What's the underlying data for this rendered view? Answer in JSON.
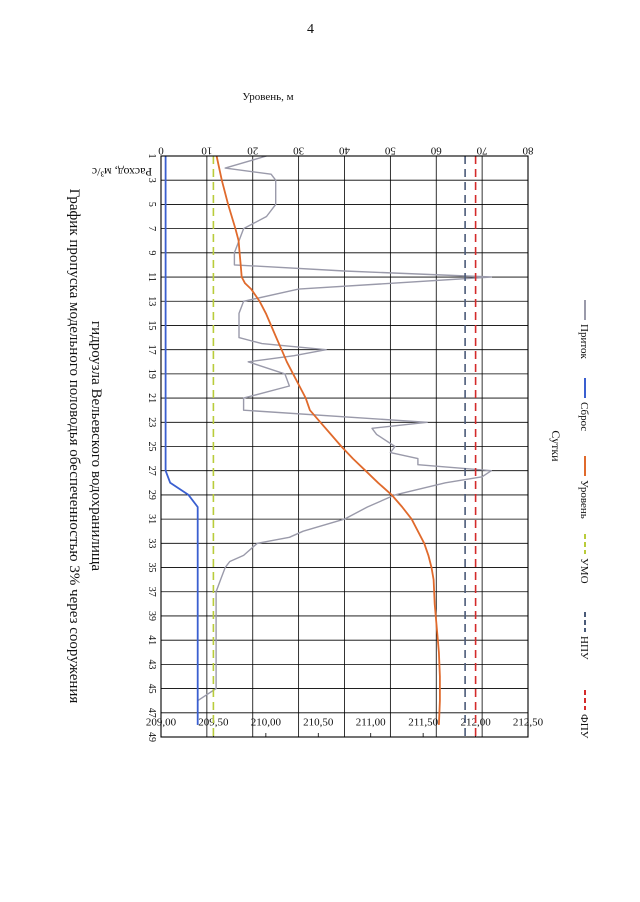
{
  "page_number": "4",
  "colors": {
    "inflow": "#9a9aaa",
    "discharge": "#3a5fd0",
    "level": "#e06a2c",
    "umo": "#b9cc3a",
    "npu": "#4a5a78",
    "fpu": "#d42a2a",
    "grid": "#000000"
  },
  "chart_data": {
    "type": "line",
    "title": "График пропуска модельного половодья обеспеченностью 3% через сооружения",
    "subtitle": "гидроузла Вельевского водохранилища",
    "xlabel": "Сутки",
    "ylabel": "Расход, м³/с",
    "y2label": "Уровень, м",
    "xlim": [
      1,
      49
    ],
    "ylim": [
      0,
      80
    ],
    "y2lim": [
      209.0,
      212.5
    ],
    "grid": true,
    "legend_position": "bottom",
    "x_ticks": [
      "1",
      "3",
      "5",
      "7",
      "9",
      "11",
      "13",
      "15",
      "17",
      "19",
      "21",
      "23",
      "25",
      "27",
      "29",
      "31",
      "33",
      "35",
      "37",
      "39",
      "41",
      "43",
      "45",
      "47",
      "49"
    ],
    "y_ticks": [
      "0",
      "10",
      "20",
      "30",
      "40",
      "50",
      "60",
      "70",
      "80"
    ],
    "y2_ticks": [
      "209,00",
      "209,50",
      "210,00",
      "210,50",
      "211,00",
      "211,50",
      "212,00",
      "212,50"
    ],
    "legend": [
      "Приток",
      "Сброс",
      "Уровень",
      "УМО",
      "НПУ",
      "ФПУ"
    ],
    "series": [
      {
        "name": "Приток",
        "axis": "left",
        "x": [
          1,
          2,
          2.5,
          3,
          4,
          5,
          6,
          7,
          8,
          9,
          10,
          10.5,
          11,
          12,
          13,
          14,
          15,
          16,
          16.5,
          17,
          17.5,
          18,
          19,
          20,
          21,
          22,
          23,
          23.5,
          24,
          25,
          25.5,
          26,
          26.5,
          27,
          27.5,
          28,
          29,
          30,
          31,
          32,
          32.5,
          33,
          34,
          34.5,
          35,
          36,
          37,
          38,
          39,
          40,
          41,
          42,
          43,
          44,
          45,
          46,
          47,
          48
        ],
        "y": [
          23,
          14,
          24,
          25,
          25,
          25,
          23,
          18,
          17,
          16,
          16,
          40,
          72,
          30,
          18,
          17,
          17,
          17,
          22,
          36,
          29,
          19,
          27,
          28,
          18,
          18,
          58,
          46,
          47,
          51,
          50,
          56,
          56,
          72,
          70,
          62,
          51,
          45,
          40,
          31,
          28,
          21,
          18,
          15,
          14,
          13,
          12,
          12,
          12,
          12,
          12,
          12,
          12,
          12,
          12,
          8,
          8,
          8
        ]
      },
      {
        "name": "Сброс",
        "axis": "left",
        "x": [
          1,
          27,
          28,
          29,
          30,
          31,
          32,
          33,
          34,
          35,
          36,
          37,
          38,
          39,
          40,
          41,
          42,
          43,
          44,
          45,
          46,
          47,
          48
        ],
        "y": [
          1,
          1,
          2,
          6,
          8,
          8,
          8,
          8,
          8,
          8,
          8,
          8,
          8,
          8,
          8,
          8,
          8,
          8,
          8,
          8,
          8,
          8,
          8
        ]
      },
      {
        "name": "Уровень",
        "axis": "right",
        "x": [
          1,
          3,
          5,
          7,
          8,
          9,
          10,
          11,
          11.5,
          12,
          13,
          14,
          15,
          16,
          17,
          18,
          19,
          20,
          21,
          22,
          23,
          24,
          25,
          26,
          27,
          28,
          29,
          30,
          31,
          32,
          33,
          34,
          35,
          36,
          38,
          40,
          42,
          44,
          46,
          48
        ],
        "y": [
          209.53,
          209.58,
          209.64,
          209.71,
          209.74,
          209.75,
          209.76,
          209.77,
          209.8,
          209.86,
          209.94,
          210.0,
          210.05,
          210.1,
          210.15,
          210.2,
          210.26,
          210.32,
          210.38,
          210.42,
          210.52,
          210.62,
          210.72,
          210.83,
          210.95,
          211.07,
          211.2,
          211.3,
          211.39,
          211.45,
          211.51,
          211.55,
          211.58,
          211.6,
          211.61,
          211.63,
          211.65,
          211.66,
          211.66,
          211.65
        ]
      },
      {
        "name": "УМО",
        "axis": "right",
        "x": [
          1,
          49
        ],
        "y": [
          209.5,
          209.5
        ]
      },
      {
        "name": "НПУ",
        "axis": "right",
        "x": [
          1,
          49
        ],
        "y": [
          211.9,
          211.9
        ]
      },
      {
        "name": "ФПУ",
        "axis": "right",
        "x": [
          1,
          49
        ],
        "y": [
          212.0,
          212.0
        ]
      }
    ]
  }
}
